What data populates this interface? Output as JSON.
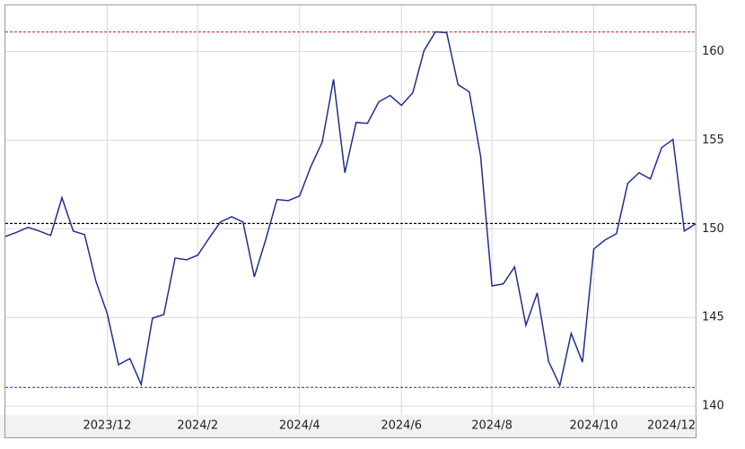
{
  "chart_data": {
    "type": "line",
    "categories": [
      null,
      null,
      null,
      null,
      null,
      null,
      null,
      null,
      null,
      "2023/12",
      null,
      null,
      null,
      null,
      null,
      null,
      null,
      "2024/2",
      null,
      null,
      null,
      null,
      null,
      null,
      null,
      null,
      "2024/4",
      null,
      null,
      null,
      null,
      null,
      null,
      null,
      null,
      "2024/6",
      null,
      null,
      null,
      null,
      null,
      null,
      null,
      "2024/8",
      null,
      null,
      null,
      null,
      null,
      null,
      null,
      null,
      "2024/10",
      null,
      null,
      null,
      null,
      null,
      null,
      null,
      null,
      "2024/12"
    ],
    "series": [
      {
        "color": "#1f2f8f",
        "values": [
          149.57,
          149.8,
          150.08,
          149.87,
          149.62,
          151.75,
          149.87,
          149.67,
          147.04,
          145.22,
          142.33,
          142.68,
          141.22,
          144.96,
          145.16,
          148.35,
          148.25,
          148.51,
          149.47,
          150.38,
          150.68,
          150.38,
          147.29,
          149.37,
          151.65,
          151.59,
          151.85,
          153.52,
          154.89,
          158.43,
          153.16,
          156.0,
          155.95,
          157.16,
          157.52,
          156.96,
          157.67,
          160.05,
          161.11,
          161.06,
          158.13,
          157.72,
          154.08,
          146.78,
          146.89,
          147.85,
          144.56,
          146.38,
          142.53,
          141.16,
          144.1,
          142.48,
          148.86,
          149.37,
          149.72,
          152.56,
          153.16,
          152.81,
          154.58,
          155.04,
          149.87,
          150.28
        ]
      }
    ],
    "ylim": [
      139.5,
      162.6
    ],
    "yticks": [
      140,
      145,
      150,
      155,
      160
    ],
    "grid": true,
    "hlines": [
      {
        "value": 161.1,
        "color": "#d03030"
      },
      {
        "value": 150.3,
        "color": "#000000"
      },
      {
        "value": 141.05,
        "color": "#3050c0"
      }
    ]
  }
}
